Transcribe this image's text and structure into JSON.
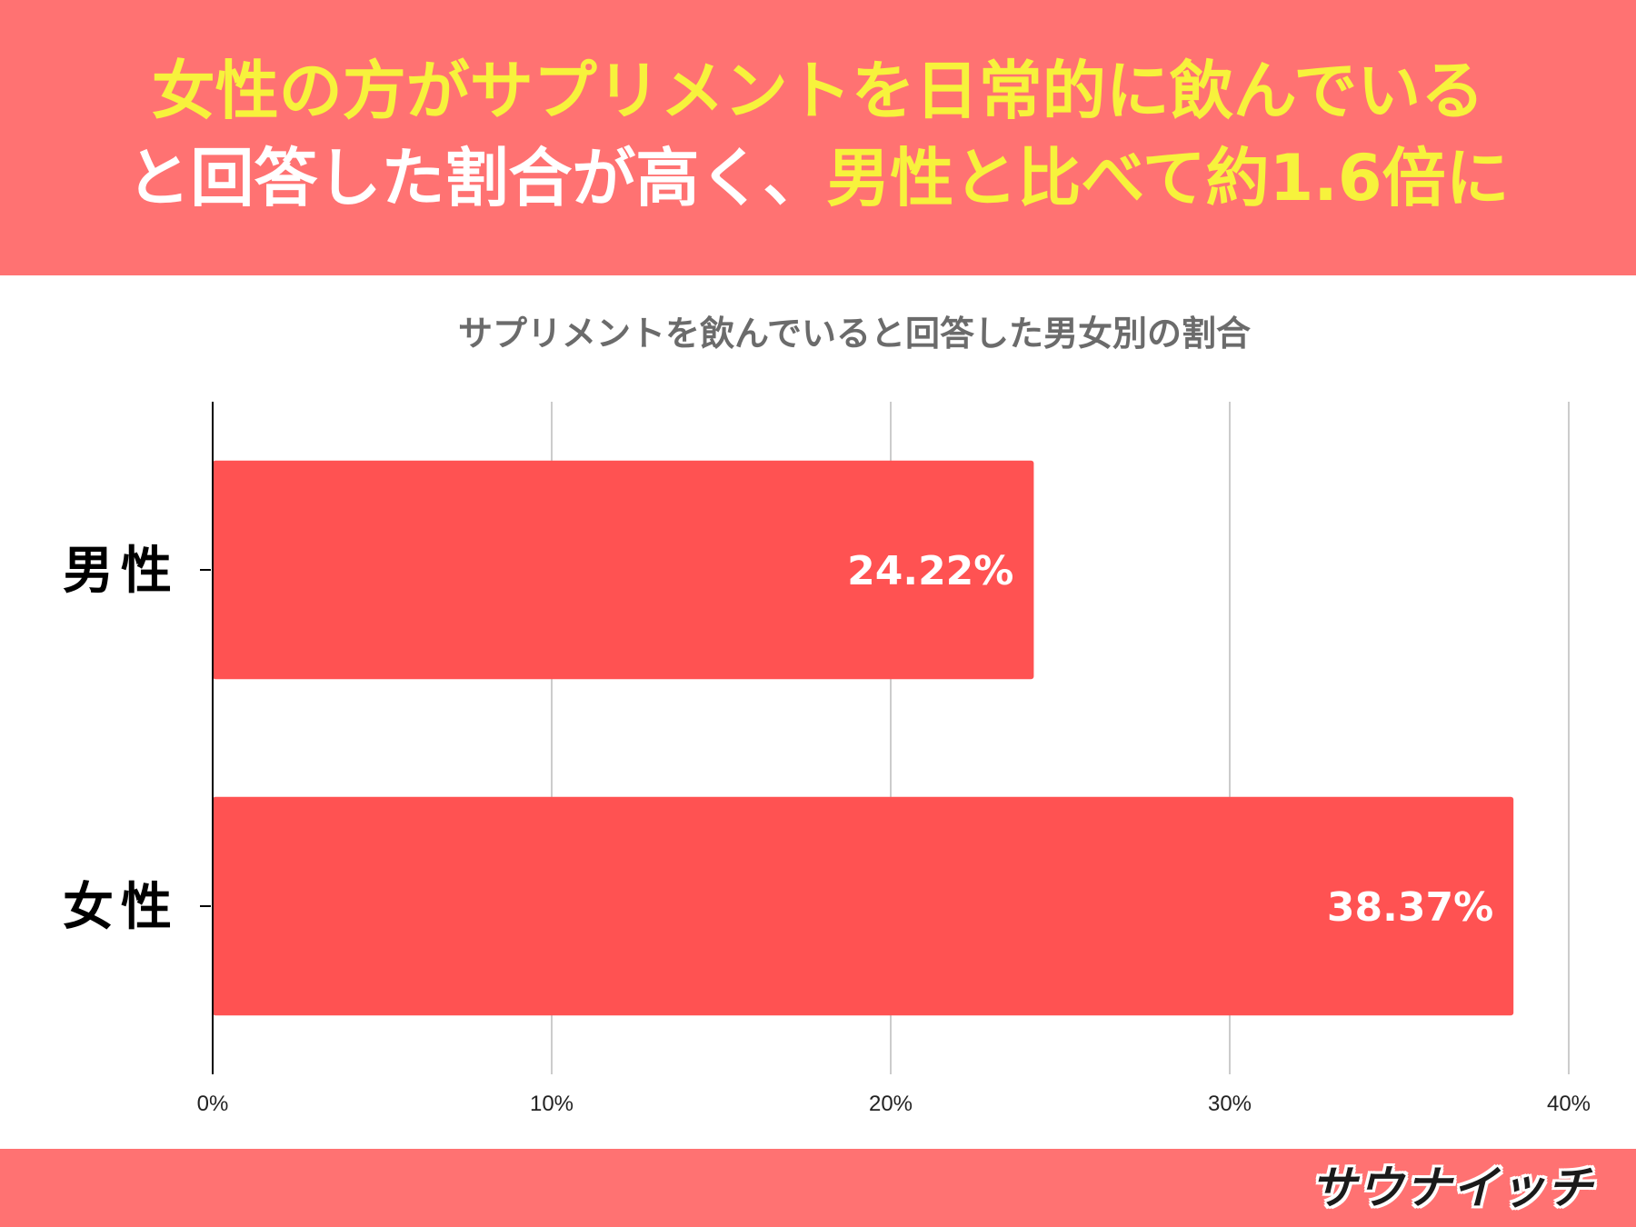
{
  "headline": {
    "line1": "女性の方がサプリメントを日常的に飲んでいる",
    "line2_plain": "と回答した割合が高く、",
    "line2_accent": "男性と比べて約1.6倍に"
  },
  "footer": {
    "logo_text": "サウナイッチ"
  },
  "colors": {
    "header_bg": "#ff7272",
    "headline_yellow": "#f7f23c",
    "bar": "#ff5252",
    "grid": "#cccccc",
    "axis": "#000000"
  },
  "chart_data": {
    "type": "bar",
    "orientation": "horizontal",
    "title": "サプリメントを飲んでいると回答した男女別の割合",
    "categories": [
      "男性",
      "女性"
    ],
    "values": [
      24.22,
      38.37
    ],
    "value_labels": [
      "24.22%",
      "38.37%"
    ],
    "xlim": [
      0,
      40
    ],
    "xticks": [
      0,
      10,
      20,
      30,
      40
    ],
    "xtick_labels": [
      "0%",
      "10%",
      "20%",
      "30%",
      "40%"
    ],
    "xlabel": "",
    "ylabel": "",
    "grid": true,
    "legend": "none"
  }
}
